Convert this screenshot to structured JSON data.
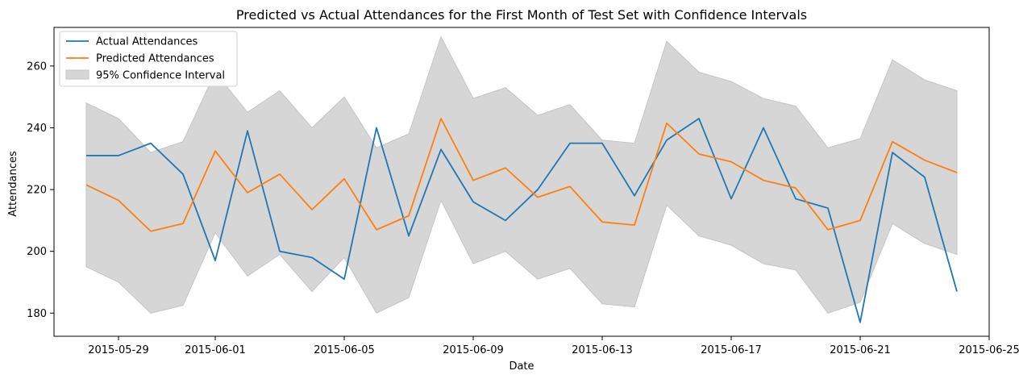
{
  "chart_data": {
    "type": "line",
    "title": "Predicted vs Actual Attendances for the First Month of Test Set with Confidence Intervals",
    "xlabel": "Date",
    "ylabel": "Attendances",
    "x": [
      "2015-05-28",
      "2015-05-29",
      "2015-05-30",
      "2015-05-31",
      "2015-06-01",
      "2015-06-02",
      "2015-06-03",
      "2015-06-04",
      "2015-06-05",
      "2015-06-06",
      "2015-06-07",
      "2015-06-08",
      "2015-06-09",
      "2015-06-10",
      "2015-06-11",
      "2015-06-12",
      "2015-06-13",
      "2015-06-14",
      "2015-06-15",
      "2015-06-16",
      "2015-06-17",
      "2015-06-18",
      "2015-06-19",
      "2015-06-20",
      "2015-06-21",
      "2015-06-22",
      "2015-06-23",
      "2015-06-24"
    ],
    "xlim": [
      "2015-05-27",
      "2015-06-25"
    ],
    "ylim": [
      172.5,
      272.5
    ],
    "x_ticks": [
      "2015-05-29",
      "2015-06-01",
      "2015-06-05",
      "2015-06-09",
      "2015-06-13",
      "2015-06-17",
      "2015-06-21",
      "2015-06-25"
    ],
    "y_ticks": [
      180,
      200,
      220,
      240,
      260
    ],
    "grid": false,
    "legend_position": "top-left",
    "series": [
      {
        "name": "Actual Attendances",
        "color": "#1f77b4",
        "values": [
          231,
          231,
          235,
          225,
          197,
          239,
          200,
          198,
          191,
          240,
          205,
          233,
          216,
          210,
          220,
          235,
          235,
          218,
          236,
          243,
          217,
          240,
          217,
          214,
          177,
          232,
          224,
          187
        ]
      },
      {
        "name": "Predicted Attendances",
        "color": "#ff7f0e",
        "values": [
          221.5,
          216.5,
          206.5,
          209,
          232.5,
          219,
          225,
          213.5,
          223.5,
          207,
          211.5,
          243,
          223,
          227,
          217.5,
          221,
          209.5,
          208.5,
          241.5,
          231.5,
          229,
          223,
          220.5,
          207,
          210,
          235.5,
          229.5,
          225.5
        ]
      }
    ],
    "confidence_interval": {
      "name": "95% Confidence Interval",
      "color": "#d6d6d6",
      "lower": [
        195,
        190,
        180,
        182.5,
        206,
        192,
        199,
        187,
        198,
        180,
        185,
        216.5,
        196,
        200,
        191,
        194.5,
        183,
        182,
        215,
        205,
        202,
        196,
        194,
        180,
        183.5,
        209,
        202.5,
        199
      ],
      "upper": [
        248,
        243,
        232,
        235.5,
        258,
        245,
        252,
        240,
        250,
        233.5,
        238,
        269.5,
        249.5,
        253,
        244,
        247.5,
        236,
        235,
        268,
        258,
        255,
        249.5,
        247,
        233.5,
        236.5,
        262,
        255.5,
        252
      ]
    }
  }
}
